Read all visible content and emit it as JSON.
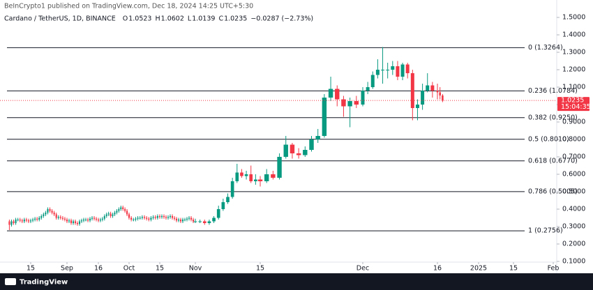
{
  "header": {
    "published": "BeInCrypto1 published on TradingView.com, Dec 18, 2024 14:25 UTC+5:30",
    "symbol": "Cardano / TetherUS, 1D, BINANCE",
    "quote": [
      {
        "k": "O",
        "v": "1.0523"
      },
      {
        "k": "H",
        "v": "1.0602"
      },
      {
        "k": "L",
        "v": "1.0139"
      },
      {
        "k": "C",
        "v": "1.0235"
      }
    ],
    "change": "−0.0287 (−2.73%)"
  },
  "footer": {
    "brand": "TradingView"
  },
  "chart_data": {
    "type": "candlestick",
    "up_color": "#089981",
    "down_color": "#f23645",
    "ylim": [
      0.032,
      1.6
    ],
    "yticks": [
      {
        "value": 0.1,
        "label": "0.1000"
      },
      {
        "value": 0.2,
        "label": "0.2000"
      },
      {
        "value": 0.3,
        "label": "0.3000"
      },
      {
        "value": 0.4,
        "label": "0.4000"
      },
      {
        "value": 0.5,
        "label": "0.5000"
      },
      {
        "value": 0.6,
        "label": "0.6000"
      },
      {
        "value": 0.7,
        "label": "0.7000"
      },
      {
        "value": 0.8,
        "label": "0.8000"
      },
      {
        "value": 0.9,
        "label": "0.9000"
      },
      {
        "value": 1.0,
        "label": "1.0000"
      },
      {
        "value": 1.1,
        "label": "1.1000"
      },
      {
        "value": 1.2,
        "label": "1.2000"
      },
      {
        "value": 1.3,
        "label": "1.3000"
      },
      {
        "value": 1.4,
        "label": "1.4000"
      },
      {
        "value": 1.5,
        "label": "1.5000"
      }
    ],
    "xticks": [
      {
        "value": "2024-08-15",
        "label": "15"
      },
      {
        "value": "2024-09-01",
        "label": "Sep"
      },
      {
        "value": "2024-09-16",
        "label": "16"
      },
      {
        "value": "2024-10-01",
        "label": "Oct"
      },
      {
        "value": "2024-10-15",
        "label": "15"
      },
      {
        "value": "2024-11-01",
        "label": "Nov"
      },
      {
        "value": "2024-11-15",
        "label": "15"
      },
      {
        "value": "2024-12-01",
        "label": "Dec"
      },
      {
        "value": "2024-12-16",
        "label": "16"
      },
      {
        "value": "2025-01-01",
        "label": "2025"
      },
      {
        "value": "2025-01-15",
        "label": "15"
      },
      {
        "value": "2025-02-01",
        "label": "Feb"
      }
    ],
    "fib_levels": [
      {
        "value": 1.3264,
        "label": "0 (1.3264)"
      },
      {
        "value": 1.0784,
        "label": "0.236 (1.0784)"
      },
      {
        "value": 0.925,
        "label": "0.382 (0.9250)"
      },
      {
        "value": 0.801,
        "label": "0.5 (0.8010)"
      },
      {
        "value": 0.677,
        "label": "0.618 (0.6770)"
      },
      {
        "value": 0.5005,
        "label": "0.786 (0.5005)"
      },
      {
        "value": 0.2756,
        "label": "1 (0.2756)"
      }
    ],
    "last_price": {
      "value": 1.0235,
      "label": "1.0235",
      "countdown": "15:04:35"
    },
    "x": [
      "2024-08-05",
      "2024-08-06",
      "2024-08-07",
      "2024-08-08",
      "2024-08-09",
      "2024-08-10",
      "2024-08-11",
      "2024-08-12",
      "2024-08-13",
      "2024-08-14",
      "2024-08-15",
      "2024-08-16",
      "2024-08-17",
      "2024-08-18",
      "2024-08-19",
      "2024-08-20",
      "2024-08-21",
      "2024-08-22",
      "2024-08-23",
      "2024-08-24",
      "2024-08-25",
      "2024-08-26",
      "2024-08-27",
      "2024-08-28",
      "2024-08-29",
      "2024-08-30",
      "2024-08-31",
      "2024-09-01",
      "2024-09-02",
      "2024-09-03",
      "2024-09-04",
      "2024-09-05",
      "2024-09-06",
      "2024-09-07",
      "2024-09-08",
      "2024-09-09",
      "2024-09-10",
      "2024-09-11",
      "2024-09-12",
      "2024-09-13",
      "2024-09-14",
      "2024-09-15",
      "2024-09-16",
      "2024-09-17",
      "2024-09-18",
      "2024-09-19",
      "2024-09-20",
      "2024-09-21",
      "2024-09-22",
      "2024-09-23",
      "2024-09-24",
      "2024-09-25",
      "2024-09-26",
      "2024-09-27",
      "2024-09-28",
      "2024-09-29",
      "2024-09-30",
      "2024-10-01",
      "2024-10-02",
      "2024-10-03",
      "2024-10-04",
      "2024-10-05",
      "2024-10-06",
      "2024-10-07",
      "2024-10-08",
      "2024-10-09",
      "2024-10-10",
      "2024-10-11",
      "2024-10-12",
      "2024-10-13",
      "2024-10-14",
      "2024-10-15",
      "2024-10-16",
      "2024-10-17",
      "2024-10-18",
      "2024-10-19",
      "2024-10-20",
      "2024-10-21",
      "2024-10-22",
      "2024-10-23",
      "2024-10-24",
      "2024-10-25",
      "2024-10-26",
      "2024-10-27",
      "2024-10-28",
      "2024-10-29",
      "2024-10-30",
      "2024-10-31",
      "2024-11-01",
      "2024-11-02",
      "2024-11-03",
      "2024-11-04",
      "2024-11-05",
      "2024-11-06",
      "2024-11-07",
      "2024-11-08",
      "2024-11-09",
      "2024-11-10",
      "2024-11-11",
      "2024-11-12",
      "2024-11-13",
      "2024-11-14",
      "2024-11-15",
      "2024-11-16",
      "2024-11-17",
      "2024-11-18",
      "2024-11-19",
      "2024-11-20",
      "2024-11-21",
      "2024-11-22",
      "2024-11-23",
      "2024-11-24",
      "2024-11-25",
      "2024-11-26",
      "2024-11-27",
      "2024-11-28",
      "2024-11-29",
      "2024-11-30",
      "2024-12-01",
      "2024-12-02",
      "2024-12-03",
      "2024-12-04",
      "2024-12-05",
      "2024-12-06",
      "2024-12-07",
      "2024-12-08",
      "2024-12-09",
      "2024-12-10",
      "2024-12-11",
      "2024-12-12",
      "2024-12-13",
      "2024-12-14",
      "2024-12-15",
      "2024-12-16",
      "2024-12-17",
      "2024-12-18"
    ],
    "open": [
      0.33,
      0.31,
      0.33,
      0.32,
      0.34,
      0.34,
      0.335,
      0.33,
      0.34,
      0.335,
      0.33,
      0.335,
      0.34,
      0.345,
      0.34,
      0.35,
      0.36,
      0.37,
      0.38,
      0.4,
      0.39,
      0.38,
      0.37,
      0.35,
      0.355,
      0.35,
      0.345,
      0.34,
      0.33,
      0.335,
      0.32,
      0.33,
      0.32,
      0.315,
      0.33,
      0.335,
      0.34,
      0.34,
      0.335,
      0.345,
      0.35,
      0.345,
      0.34,
      0.335,
      0.34,
      0.345,
      0.36,
      0.37,
      0.375,
      0.36,
      0.37,
      0.38,
      0.39,
      0.4,
      0.41,
      0.4,
      0.39,
      0.37,
      0.35,
      0.34,
      0.34,
      0.345,
      0.35,
      0.35,
      0.355,
      0.35,
      0.345,
      0.34,
      0.35,
      0.355,
      0.35,
      0.36,
      0.355,
      0.36,
      0.355,
      0.35,
      0.355,
      0.36,
      0.35,
      0.345,
      0.335,
      0.34,
      0.33,
      0.34,
      0.34,
      0.345,
      0.35,
      0.34,
      0.33,
      0.33,
      0.33,
      0.32,
      0.33,
      0.35,
      0.4,
      0.44,
      0.47,
      0.56,
      0.61,
      0.59,
      0.6,
      0.56,
      0.57,
      0.56,
      0.6,
      0.58,
      0.7,
      0.77,
      0.72,
      0.71,
      0.74,
      0.8,
      0.82,
      1.04,
      1.09,
      1.03,
      0.99,
      1.02,
      1.0,
      1.08,
      1.1,
      1.17,
      1.2,
      1.2,
      1.2,
      1.22,
      1.16,
      1.23,
      1.18,
      0.98,
      1.0,
      1.08,
      1.11,
      1.08,
      1.07,
      1.0523
    ],
    "high": [
      0.34,
      0.34,
      0.34,
      0.35,
      0.35,
      0.35,
      0.345,
      0.35,
      0.35,
      0.345,
      0.345,
      0.35,
      0.355,
      0.355,
      0.36,
      0.37,
      0.38,
      0.39,
      0.41,
      0.41,
      0.4,
      0.39,
      0.38,
      0.365,
      0.365,
      0.36,
      0.355,
      0.35,
      0.345,
      0.345,
      0.34,
      0.34,
      0.33,
      0.34,
      0.345,
      0.35,
      0.35,
      0.35,
      0.355,
      0.36,
      0.36,
      0.355,
      0.35,
      0.35,
      0.355,
      0.37,
      0.38,
      0.385,
      0.385,
      0.38,
      0.39,
      0.4,
      0.41,
      0.42,
      0.42,
      0.41,
      0.4,
      0.38,
      0.36,
      0.35,
      0.355,
      0.36,
      0.36,
      0.365,
      0.365,
      0.36,
      0.355,
      0.36,
      0.365,
      0.365,
      0.37,
      0.37,
      0.37,
      0.37,
      0.365,
      0.365,
      0.37,
      0.37,
      0.36,
      0.355,
      0.35,
      0.35,
      0.35,
      0.35,
      0.355,
      0.36,
      0.36,
      0.35,
      0.345,
      0.34,
      0.34,
      0.34,
      0.36,
      0.42,
      0.46,
      0.49,
      0.58,
      0.66,
      0.63,
      0.62,
      0.65,
      0.6,
      0.59,
      0.63,
      0.62,
      0.72,
      0.82,
      0.78,
      0.75,
      0.76,
      0.82,
      0.86,
      1.06,
      1.16,
      1.11,
      1.05,
      1.04,
      1.05,
      1.1,
      1.13,
      1.19,
      1.26,
      1.33,
      1.24,
      1.25,
      1.25,
      1.24,
      1.24,
      1.2,
      1.03,
      1.12,
      1.18,
      1.13,
      1.12,
      1.1,
      1.0602
    ],
    "low": [
      0.28,
      0.3,
      0.31,
      0.31,
      0.33,
      0.325,
      0.32,
      0.32,
      0.325,
      0.32,
      0.32,
      0.325,
      0.33,
      0.33,
      0.33,
      0.34,
      0.35,
      0.36,
      0.37,
      0.38,
      0.37,
      0.36,
      0.34,
      0.34,
      0.34,
      0.335,
      0.33,
      0.32,
      0.32,
      0.31,
      0.31,
      0.31,
      0.305,
      0.305,
      0.32,
      0.325,
      0.33,
      0.325,
      0.325,
      0.335,
      0.335,
      0.33,
      0.325,
      0.325,
      0.33,
      0.335,
      0.35,
      0.36,
      0.35,
      0.35,
      0.36,
      0.37,
      0.38,
      0.39,
      0.39,
      0.38,
      0.36,
      0.34,
      0.33,
      0.33,
      0.33,
      0.335,
      0.34,
      0.34,
      0.34,
      0.335,
      0.33,
      0.33,
      0.34,
      0.34,
      0.34,
      0.345,
      0.345,
      0.345,
      0.34,
      0.34,
      0.345,
      0.34,
      0.335,
      0.325,
      0.325,
      0.32,
      0.32,
      0.33,
      0.33,
      0.335,
      0.33,
      0.32,
      0.32,
      0.32,
      0.31,
      0.31,
      0.32,
      0.34,
      0.39,
      0.43,
      0.46,
      0.55,
      0.58,
      0.57,
      0.55,
      0.54,
      0.53,
      0.55,
      0.57,
      0.57,
      0.69,
      0.69,
      0.69,
      0.7,
      0.73,
      0.78,
      0.81,
      1.02,
      0.99,
      0.93,
      0.87,
      0.98,
      0.99,
      1.06,
      1.09,
      1.15,
      1.12,
      1.15,
      1.17,
      1.14,
      1.14,
      1.15,
      0.91,
      0.91,
      0.97,
      1.07,
      1.04,
      1.03,
      1.03,
      1.0139
    ],
    "close": [
      0.31,
      0.33,
      0.32,
      0.34,
      0.34,
      0.335,
      0.33,
      0.34,
      0.335,
      0.33,
      0.335,
      0.34,
      0.345,
      0.34,
      0.35,
      0.36,
      0.37,
      0.38,
      0.4,
      0.39,
      0.38,
      0.37,
      0.35,
      0.355,
      0.35,
      0.345,
      0.34,
      0.33,
      0.335,
      0.32,
      0.33,
      0.32,
      0.315,
      0.33,
      0.335,
      0.34,
      0.34,
      0.335,
      0.345,
      0.35,
      0.345,
      0.34,
      0.335,
      0.34,
      0.345,
      0.36,
      0.37,
      0.375,
      0.36,
      0.37,
      0.38,
      0.39,
      0.4,
      0.41,
      0.4,
      0.39,
      0.37,
      0.35,
      0.34,
      0.34,
      0.345,
      0.35,
      0.35,
      0.355,
      0.35,
      0.345,
      0.34,
      0.35,
      0.355,
      0.35,
      0.36,
      0.355,
      0.36,
      0.355,
      0.35,
      0.355,
      0.36,
      0.35,
      0.345,
      0.335,
      0.34,
      0.33,
      0.34,
      0.34,
      0.345,
      0.35,
      0.34,
      0.33,
      0.33,
      0.33,
      0.32,
      0.33,
      0.35,
      0.4,
      0.44,
      0.47,
      0.56,
      0.61,
      0.59,
      0.6,
      0.56,
      0.57,
      0.56,
      0.6,
      0.58,
      0.7,
      0.77,
      0.72,
      0.71,
      0.74,
      0.8,
      0.82,
      1.04,
      1.09,
      1.03,
      0.99,
      1.02,
      1.0,
      1.08,
      1.1,
      1.17,
      1.2,
      1.2,
      1.2,
      1.22,
      1.16,
      1.23,
      1.18,
      0.98,
      1.0,
      1.08,
      1.11,
      1.08,
      1.07,
      1.0523,
      1.0235
    ]
  }
}
